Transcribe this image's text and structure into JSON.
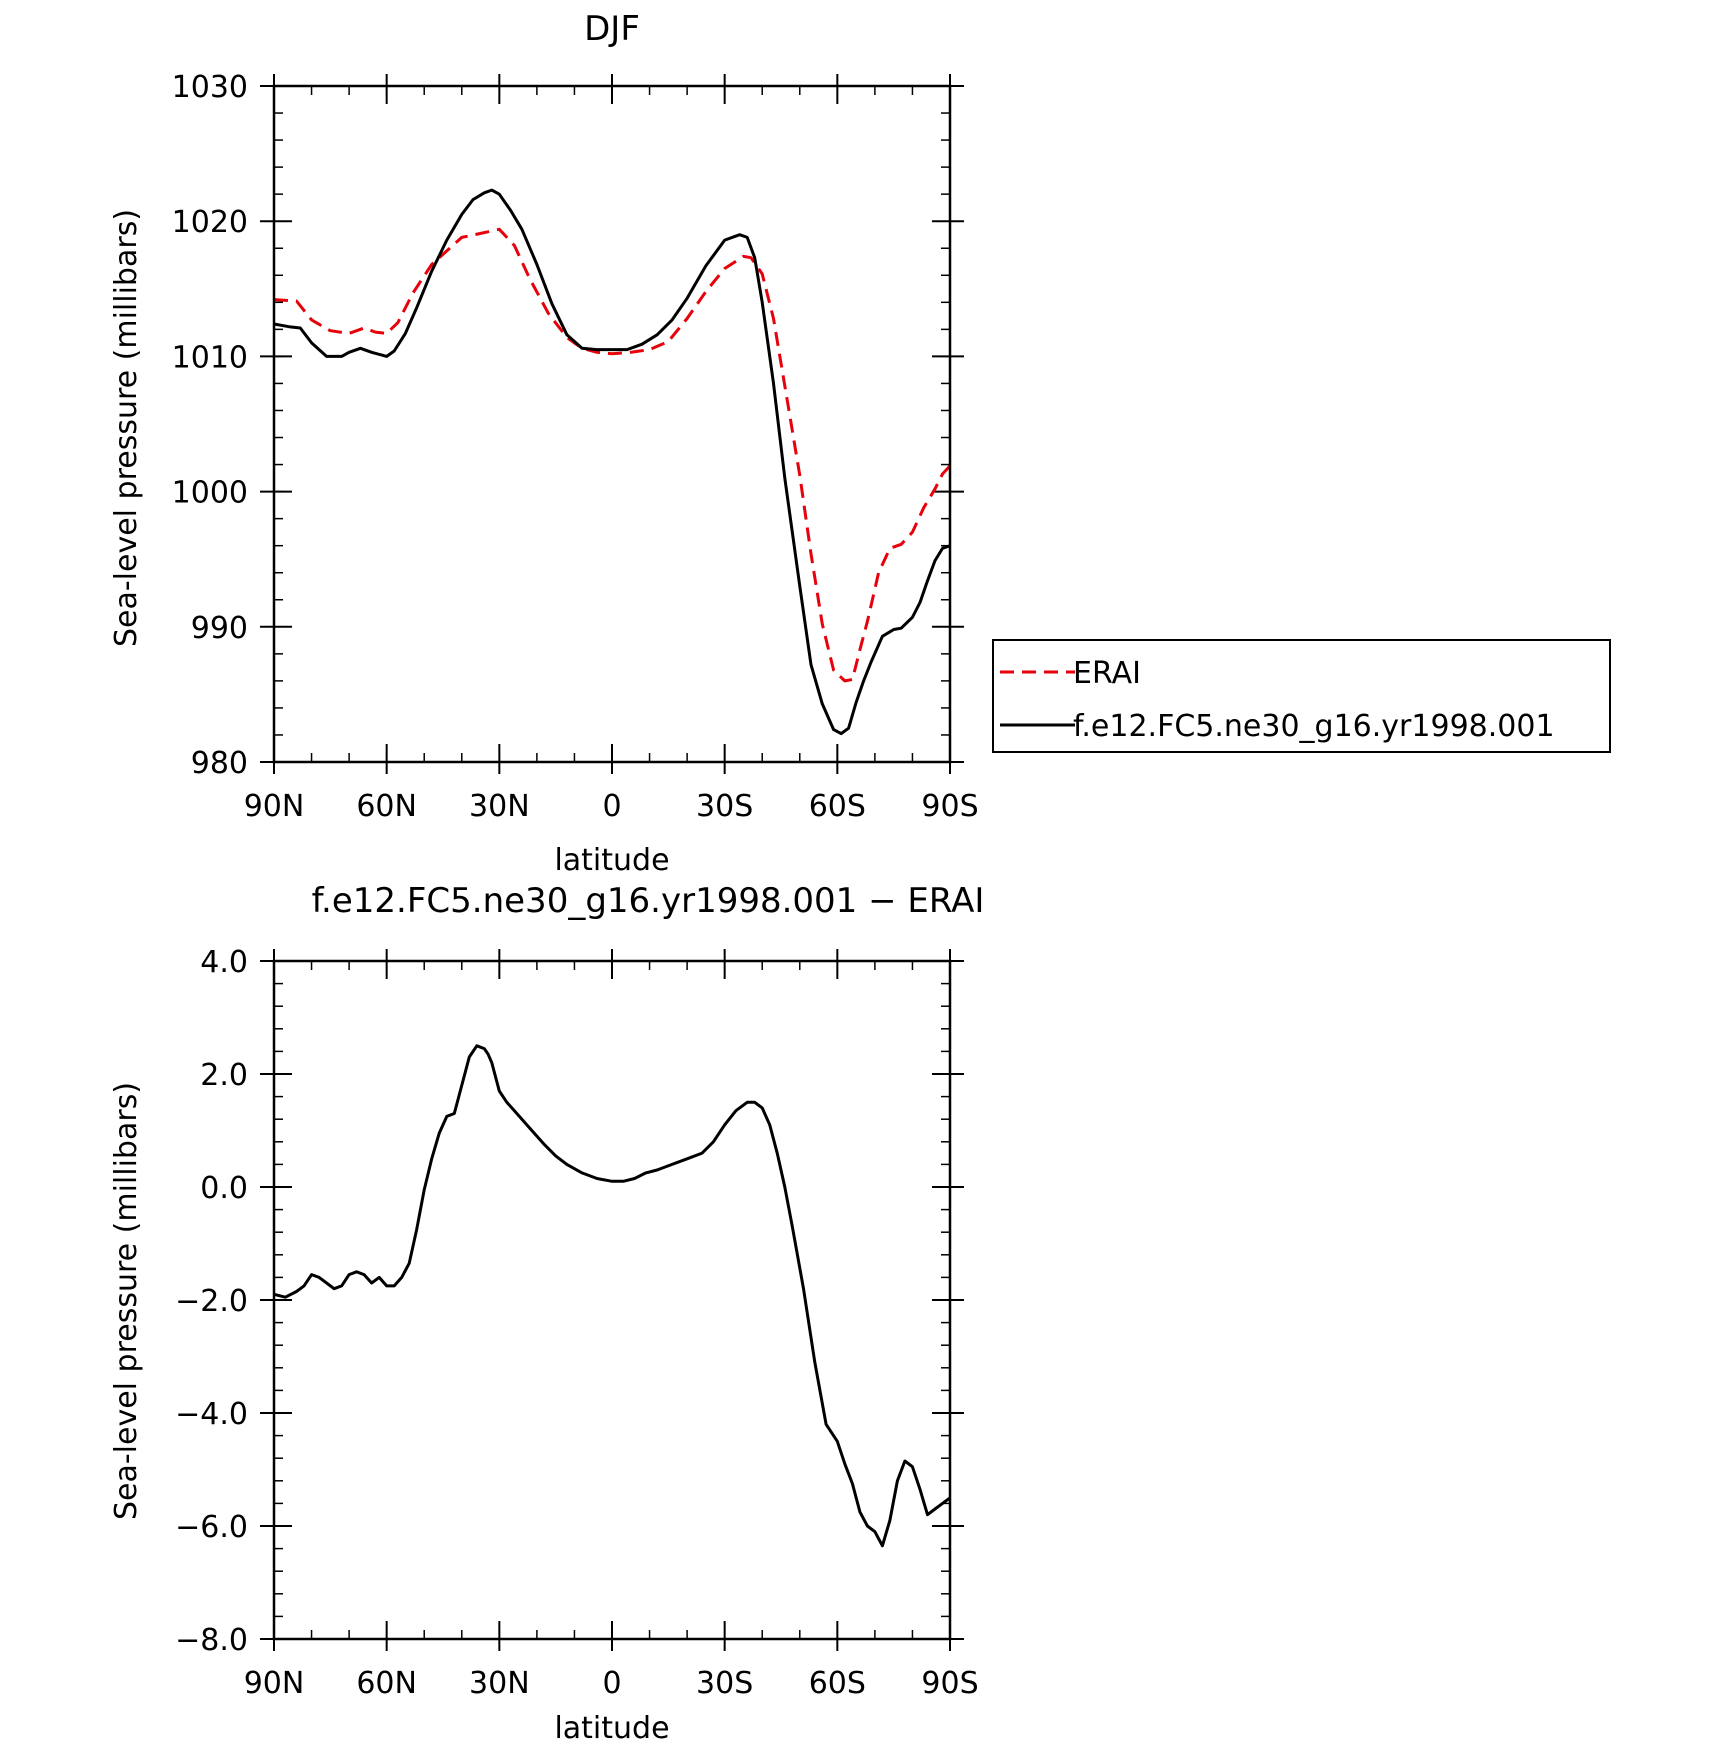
{
  "colors": {
    "erai": "#e8000b",
    "model": "#000000",
    "axes": "#000000"
  },
  "chart_data": [
    {
      "type": "line",
      "title": "DJF",
      "xlabel": "latitude",
      "ylabel": "Sea-level pressure (millibars)",
      "xlim": [
        90,
        -90
      ],
      "ylim": [
        980,
        1030
      ],
      "x_ticks": [
        90,
        60,
        30,
        0,
        -30,
        -60,
        -90
      ],
      "x_tick_labels": [
        "90N",
        "60N",
        "30N",
        "0",
        "30S",
        "60S",
        "90S"
      ],
      "y_ticks": [
        980,
        990,
        1000,
        1010,
        1020,
        1030
      ],
      "y_tick_labels": [
        "980",
        "990",
        "1000",
        "1010",
        "1020",
        "1030"
      ],
      "grid": false,
      "legend": {
        "placement": "right",
        "entries": [
          "ERAI",
          "f.e12.FC5.ne30_g16.yr1998.001"
        ]
      },
      "series": [
        {
          "name": "ERAI",
          "style": "dashed",
          "x": [
            90,
            84,
            80,
            75,
            70,
            66,
            63,
            60,
            57,
            53,
            48,
            44,
            40,
            35,
            30,
            26,
            22,
            17,
            12,
            8,
            4,
            0,
            -5,
            -10,
            -15,
            -20,
            -25,
            -30,
            -35,
            -37,
            -40,
            -43,
            -47,
            -50,
            -53,
            -56,
            -59,
            -62,
            -64,
            -66,
            -68,
            -71,
            -74,
            -77,
            -80,
            -83,
            -86,
            -88,
            -90
          ],
          "y": [
            1014.2,
            1014.1,
            1012.7,
            1011.9,
            1011.7,
            1012.1,
            1011.8,
            1011.7,
            1012.5,
            1014.7,
            1016.8,
            1017.8,
            1018.8,
            1019.1,
            1019.4,
            1018.2,
            1015.8,
            1013.2,
            1011.4,
            1010.6,
            1010.3,
            1010.2,
            1010.3,
            1010.5,
            1011.1,
            1012.8,
            1014.8,
            1016.5,
            1017.4,
            1017.3,
            1016.1,
            1012.8,
            1006.2,
            1001.2,
            995.4,
            990.2,
            986.8,
            986.0,
            986.1,
            988.3,
            990.4,
            994.0,
            995.8,
            996.1,
            997.0,
            998.8,
            1000.2,
            1001.3,
            1001.9
          ]
        },
        {
          "name": "f.e12.FC5.ne30_g16.yr1998.001",
          "style": "solid",
          "x": [
            90,
            86,
            83,
            80,
            76,
            72,
            70,
            67,
            64,
            60,
            58,
            55,
            52,
            48,
            44,
            40,
            37,
            34,
            32,
            30,
            27,
            24,
            20,
            16,
            12,
            8,
            4,
            0,
            -4,
            -8,
            -12,
            -16,
            -20,
            -25,
            -30,
            -34,
            -36,
            -38,
            -40,
            -43,
            -46,
            -50,
            -53,
            -56,
            -59,
            -61,
            -63,
            -65,
            -67,
            -69,
            -72,
            -75,
            -77,
            -80,
            -82,
            -84,
            -86,
            -88,
            -90
          ],
          "y": [
            1012.4,
            1012.2,
            1012.1,
            1011.0,
            1010.0,
            1010.0,
            1010.3,
            1010.6,
            1010.3,
            1010.0,
            1010.4,
            1011.7,
            1013.6,
            1016.3,
            1018.6,
            1020.5,
            1021.6,
            1022.1,
            1022.3,
            1022.0,
            1020.8,
            1019.4,
            1016.8,
            1013.9,
            1011.6,
            1010.6,
            1010.5,
            1010.5,
            1010.5,
            1010.9,
            1011.6,
            1012.7,
            1014.3,
            1016.7,
            1018.6,
            1019.0,
            1018.8,
            1017.3,
            1014.0,
            1008.0,
            1001.0,
            993.0,
            987.2,
            984.3,
            982.4,
            982.1,
            982.5,
            984.4,
            986.0,
            987.4,
            989.3,
            989.8,
            989.9,
            990.7,
            991.8,
            993.4,
            994.9,
            995.8,
            996.0
          ]
        }
      ]
    },
    {
      "type": "line",
      "title": "f.e12.FC5.ne30_g16.yr1998.001 − ERAI",
      "xlabel": "latitude",
      "ylabel": "Sea-level pressure (millibars)",
      "xlim": [
        90,
        -90
      ],
      "ylim": [
        -8.0,
        4.0
      ],
      "x_ticks": [
        90,
        60,
        30,
        0,
        -30,
        -60,
        -90
      ],
      "x_tick_labels": [
        "90N",
        "60N",
        "30N",
        "0",
        "30S",
        "60S",
        "90S"
      ],
      "y_ticks": [
        -8.0,
        -6.0,
        -4.0,
        -2.0,
        0.0,
        2.0,
        4.0
      ],
      "y_tick_labels": [
        "−8.0",
        "−6.0",
        "−4.0",
        "−2.0",
        "0.0",
        "2.0",
        "4.0"
      ],
      "grid": false,
      "series": [
        {
          "style": "solid",
          "x": [
            90,
            87,
            84,
            82,
            80,
            78,
            76,
            74,
            72,
            70,
            68,
            66,
            64,
            62,
            60,
            58,
            56,
            54,
            52,
            50,
            48,
            46,
            44,
            42,
            40,
            38,
            36,
            34,
            33,
            32,
            30,
            28,
            26,
            22,
            18,
            15,
            12,
            8,
            4,
            0,
            -3,
            -6,
            -9,
            -12,
            -16,
            -20,
            -24,
            -27,
            -30,
            -33,
            -36,
            -38,
            -40,
            -42,
            -44,
            -46,
            -48,
            -51,
            -54,
            -57,
            -60,
            -62,
            -64,
            -66,
            -68,
            -70,
            -72,
            -74,
            -76,
            -78,
            -80,
            -82,
            -84,
            -86,
            -88,
            -90
          ],
          "y": [
            -1.9,
            -1.95,
            -1.85,
            -1.75,
            -1.55,
            -1.6,
            -1.7,
            -1.8,
            -1.75,
            -1.55,
            -1.5,
            -1.55,
            -1.7,
            -1.6,
            -1.75,
            -1.75,
            -1.6,
            -1.35,
            -0.75,
            -0.05,
            0.5,
            0.95,
            1.25,
            1.3,
            1.8,
            2.3,
            2.5,
            2.45,
            2.35,
            2.2,
            1.7,
            1.5,
            1.35,
            1.05,
            0.75,
            0.55,
            0.4,
            0.25,
            0.15,
            0.1,
            0.1,
            0.15,
            0.25,
            0.3,
            0.4,
            0.5,
            0.6,
            0.8,
            1.1,
            1.35,
            1.5,
            1.5,
            1.4,
            1.1,
            0.6,
            0.0,
            -0.7,
            -1.8,
            -3.1,
            -4.2,
            -4.5,
            -4.9,
            -5.25,
            -5.75,
            -6.0,
            -6.1,
            -6.35,
            -5.9,
            -5.2,
            -4.85,
            -4.95,
            -5.35,
            -5.8,
            -5.7,
            -5.6,
            -5.5
          ]
        }
      ]
    }
  ]
}
